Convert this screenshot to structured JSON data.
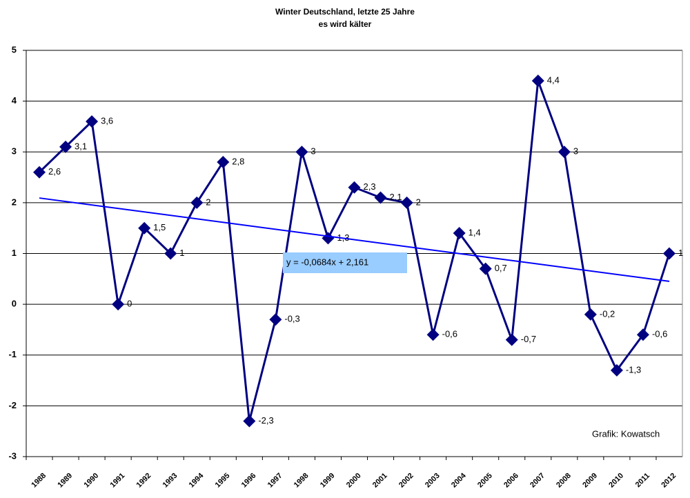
{
  "chart_data": {
    "type": "line",
    "title": "Winter Deutschland, letzte 25 Jahre",
    "subtitle": "es wird kälter",
    "categories": [
      "1988",
      "1989",
      "1990",
      "1991",
      "1992",
      "1993",
      "1994",
      "1995",
      "1996",
      "1997",
      "1998",
      "1999",
      "2000",
      "2001",
      "2002",
      "2003",
      "2004",
      "2005",
      "2006",
      "2007",
      "2008",
      "2009",
      "2010",
      "2011",
      "2012"
    ],
    "series": [
      {
        "color": "#000080",
        "values": [
          2.6,
          3.1,
          3.6,
          0,
          1.5,
          1,
          2,
          2.8,
          -2.3,
          -0.3,
          3,
          1.3,
          2.3,
          2.1,
          2,
          -0.6,
          1.4,
          0.7,
          -0.7,
          4.4,
          3,
          -0.2,
          -1.3,
          -0.6,
          1
        ],
        "value_labels": [
          "2,6",
          "3,1",
          "3,6",
          "0",
          "1,5",
          "1",
          "2",
          "2,8",
          "-2,3",
          "-0,3",
          "3",
          "1,3",
          "2,3",
          "2,1",
          "2",
          "-0,6",
          "1,4",
          "0,7",
          "-0,7",
          "4,4",
          "3",
          "-0,2",
          "-1,3",
          "-0,6",
          "1"
        ]
      }
    ],
    "trendline": {
      "label": "y = -0,0684x + 2,161",
      "slope": -0.0684,
      "intercept": 2.161,
      "color": "#0000ff"
    },
    "annotation": "Grafik: Kowatsch",
    "ylim": [
      -3,
      5
    ],
    "yticks": [
      -3,
      -2,
      -1,
      0,
      1,
      2,
      3,
      4,
      5
    ],
    "grid": true
  }
}
